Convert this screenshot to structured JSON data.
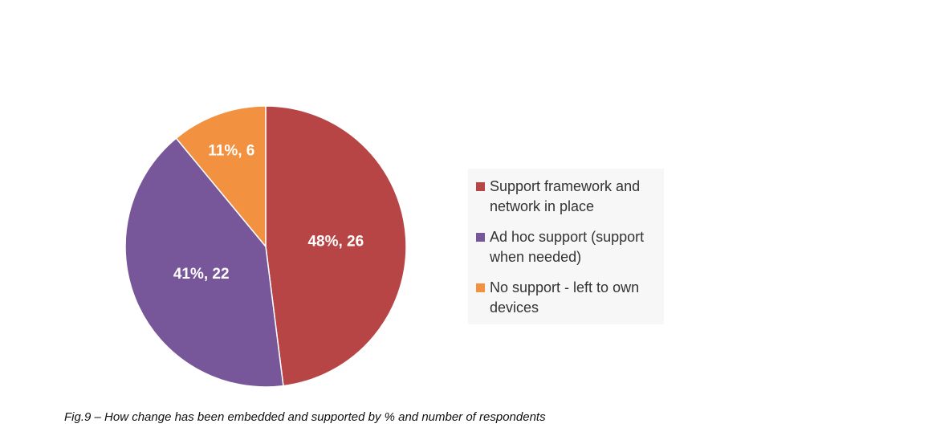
{
  "chart_data": {
    "type": "pie",
    "title": "Fig.9 – How change has been embedded and supported by % and number of respondents",
    "categories": [
      "Support framework and network in place",
      "Ad hoc support (support when needed)",
      "No support - left to own devices"
    ],
    "values": [
      48,
      41,
      11
    ],
    "value_labels": [
      "48%, 26",
      "41%, 22",
      "11%, 6"
    ],
    "colors": [
      "#b84545",
      "#77579a",
      "#f2913f"
    ],
    "legend": "right"
  }
}
